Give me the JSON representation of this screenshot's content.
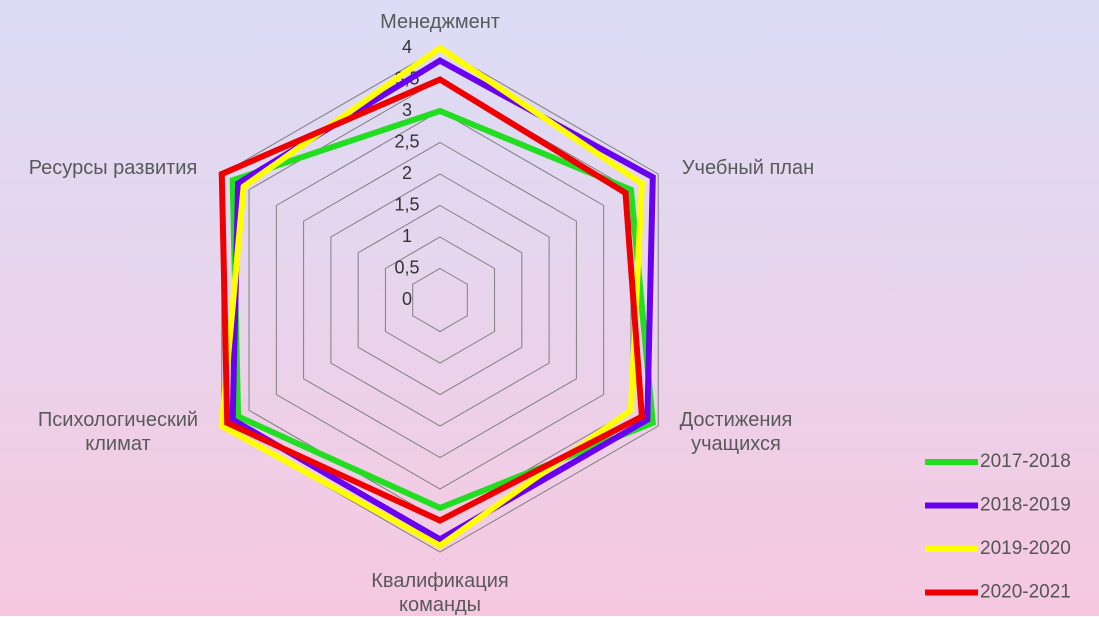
{
  "chart_data": {
    "type": "radar",
    "categories": [
      "Менеджмент",
      "Учебный план",
      "Достижения учащихся",
      "Квалификация команды",
      "Психологический климат",
      "Ресурсы развития"
    ],
    "series": [
      {
        "name": "2017-2018",
        "color": "#22dd22",
        "values": [
          3.0,
          3.5,
          3.9,
          3.3,
          3.7,
          3.8
        ]
      },
      {
        "name": "2018-2019",
        "color": "#6a00f0",
        "values": [
          3.8,
          3.9,
          3.8,
          3.8,
          3.8,
          3.7
        ]
      },
      {
        "name": "2019-2020",
        "color": "#ffff00",
        "values": [
          4.0,
          3.7,
          3.5,
          3.9,
          4.0,
          3.6
        ]
      },
      {
        "name": "2020-2021",
        "color": "#ee0000",
        "values": [
          3.5,
          3.4,
          3.7,
          3.5,
          3.9,
          4.0
        ]
      }
    ],
    "ylim": [
      0,
      4
    ],
    "yticks": [
      0,
      {
        "value": 0.5,
        "label": "0,5"
      },
      1,
      {
        "value": 1.5,
        "label": "1,5"
      },
      2,
      {
        "value": 2.5,
        "label": "2,5"
      },
      3,
      {
        "value": 3.5,
        "label": "3,5"
      },
      4
    ],
    "grid": true,
    "legend": "right"
  }
}
